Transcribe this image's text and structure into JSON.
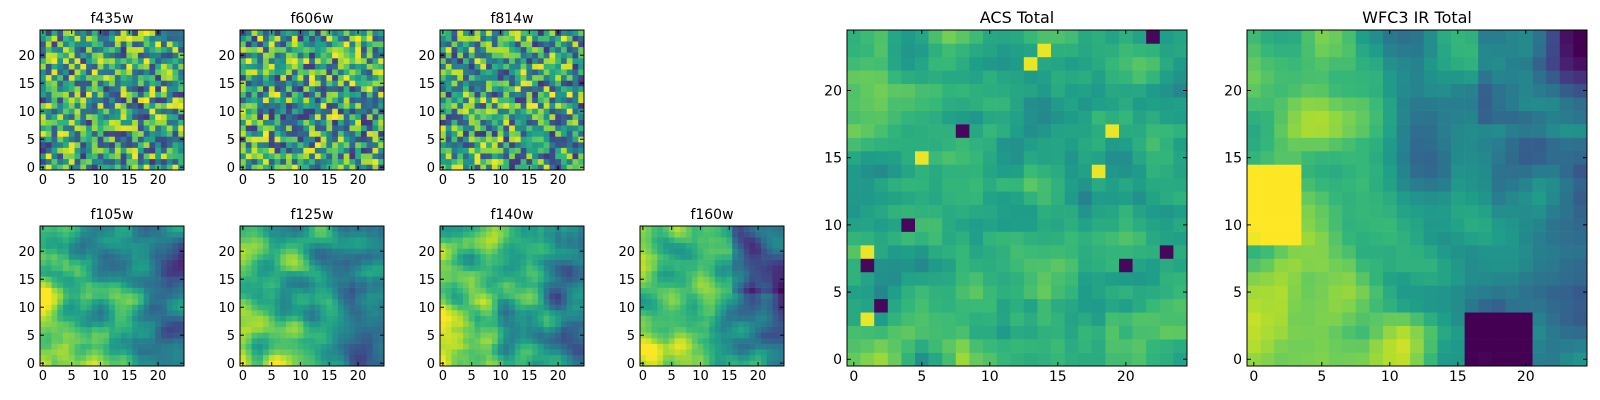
{
  "figure": {
    "panels": [
      {
        "id": "f435w",
        "title": "f435w"
      },
      {
        "id": "f606w",
        "title": "f606w"
      },
      {
        "id": "f814w",
        "title": "f814w"
      },
      {
        "id": "f105w",
        "title": "f105w"
      },
      {
        "id": "f125w",
        "title": "f125w"
      },
      {
        "id": "f140w",
        "title": "f140w"
      },
      {
        "id": "f160w",
        "title": "f160w"
      },
      {
        "id": "acs_total",
        "title": "ACS Total"
      },
      {
        "id": "wfc3_ir_total",
        "title": "WFC3 IR Total"
      }
    ]
  },
  "chart_data": [
    {
      "type": "heatmap",
      "title": "f435w",
      "grid": false,
      "colormap": "viridis",
      "xlim": [
        -0.5,
        24.5
      ],
      "ylim": [
        -0.5,
        24.5
      ],
      "xticks": [
        0,
        5,
        10,
        15,
        20
      ],
      "yticks": [
        0,
        5,
        10,
        15,
        20
      ],
      "xtick_labels": [
        "0",
        "5",
        "10",
        "15",
        "20"
      ],
      "ytick_labels": [
        "0",
        "5",
        "10",
        "15",
        "20"
      ],
      "size": [
        25,
        25
      ],
      "pattern": "uniform pixel noise"
    },
    {
      "type": "heatmap",
      "title": "f606w",
      "grid": false,
      "colormap": "viridis",
      "xlim": [
        -0.5,
        24.5
      ],
      "ylim": [
        -0.5,
        24.5
      ],
      "xticks": [
        0,
        5,
        10,
        15,
        20
      ],
      "yticks": [
        0,
        5,
        10,
        15,
        20
      ],
      "xtick_labels": [
        "0",
        "5",
        "10",
        "15",
        "20"
      ],
      "ytick_labels": [
        "0",
        "5",
        "10",
        "15",
        "20"
      ],
      "size": [
        25,
        25
      ],
      "pattern": "uniform pixel noise"
    },
    {
      "type": "heatmap",
      "title": "f814w",
      "grid": false,
      "colormap": "viridis",
      "xlim": [
        -0.5,
        24.5
      ],
      "ylim": [
        -0.5,
        24.5
      ],
      "xticks": [
        0,
        5,
        10,
        15,
        20
      ],
      "yticks": [
        0,
        5,
        10,
        15,
        20
      ],
      "xtick_labels": [
        "0",
        "5",
        "10",
        "15",
        "20"
      ],
      "ytick_labels": [
        "0",
        "5",
        "10",
        "15",
        "20"
      ],
      "size": [
        25,
        25
      ],
      "pattern": "uniform pixel noise"
    },
    {
      "type": "heatmap",
      "title": "f105w",
      "grid": false,
      "colormap": "viridis",
      "xlim": [
        -0.5,
        24.5
      ],
      "ylim": [
        -0.5,
        24.5
      ],
      "xticks": [
        0,
        5,
        10,
        15,
        20
      ],
      "yticks": [
        0,
        5,
        10,
        15,
        20
      ],
      "xtick_labels": [
        "0",
        "5",
        "10",
        "15",
        "20"
      ],
      "ytick_labels": [
        "0",
        "5",
        "10",
        "15",
        "20"
      ],
      "size": [
        25,
        25
      ],
      "pattern": "smooth, bright lower-left"
    },
    {
      "type": "heatmap",
      "title": "f125w",
      "grid": false,
      "colormap": "viridis",
      "xlim": [
        -0.5,
        24.5
      ],
      "ylim": [
        -0.5,
        24.5
      ],
      "xticks": [
        0,
        5,
        10,
        15,
        20
      ],
      "yticks": [
        0,
        5,
        10,
        15,
        20
      ],
      "xtick_labels": [
        "0",
        "5",
        "10",
        "15",
        "20"
      ],
      "ytick_labels": [
        "0",
        "5",
        "10",
        "15",
        "20"
      ],
      "size": [
        25,
        25
      ],
      "pattern": "smooth, bright lower-left"
    },
    {
      "type": "heatmap",
      "title": "f140w",
      "grid": false,
      "colormap": "viridis",
      "xlim": [
        -0.5,
        24.5
      ],
      "ylim": [
        -0.5,
        24.5
      ],
      "xticks": [
        0,
        5,
        10,
        15,
        20
      ],
      "yticks": [
        0,
        5,
        10,
        15,
        20
      ],
      "xtick_labels": [
        "0",
        "5",
        "10",
        "15",
        "20"
      ],
      "ytick_labels": [
        "0",
        "5",
        "10",
        "15",
        "20"
      ],
      "size": [
        25,
        25
      ],
      "pattern": "smooth, bright lower-left"
    },
    {
      "type": "heatmap",
      "title": "f160w",
      "grid": false,
      "colormap": "viridis",
      "xlim": [
        -0.5,
        24.5
      ],
      "ylim": [
        -0.5,
        24.5
      ],
      "xticks": [
        0,
        5,
        10,
        15,
        20
      ],
      "yticks": [
        0,
        5,
        10,
        15,
        20
      ],
      "xtick_labels": [
        "0",
        "5",
        "10",
        "15",
        "20"
      ],
      "ytick_labels": [
        "0",
        "5",
        "10",
        "15",
        "20"
      ],
      "size": [
        25,
        25
      ],
      "pattern": "smooth, bright lower-left, dark upper-right"
    },
    {
      "type": "heatmap",
      "title": "ACS Total",
      "grid": false,
      "colormap": "viridis",
      "xlim": [
        -0.5,
        24.5
      ],
      "ylim": [
        -0.5,
        24.5
      ],
      "xticks": [
        0,
        5,
        10,
        15,
        20
      ],
      "yticks": [
        0,
        5,
        10,
        15,
        20
      ],
      "xtick_labels": [
        "0",
        "5",
        "10",
        "15",
        "20"
      ],
      "ytick_labels": [
        "0",
        "5",
        "10",
        "15",
        "20"
      ],
      "size": [
        25,
        25
      ],
      "pattern": "pixel noise, mostly mid-green"
    },
    {
      "type": "heatmap",
      "title": "WFC3 IR Total",
      "grid": false,
      "colormap": "viridis",
      "xlim": [
        -0.5,
        24.5
      ],
      "ylim": [
        -0.5,
        24.5
      ],
      "xticks": [
        0,
        5,
        10,
        15,
        20
      ],
      "yticks": [
        0,
        5,
        10,
        15,
        20
      ],
      "xtick_labels": [
        "0",
        "5",
        "10",
        "15",
        "20"
      ],
      "ytick_labels": [
        "0",
        "5",
        "10",
        "15",
        "20"
      ],
      "size": [
        25,
        25
      ],
      "pattern": "bright yellow left and lower-left, dark spots upper-right and lower-right"
    }
  ]
}
